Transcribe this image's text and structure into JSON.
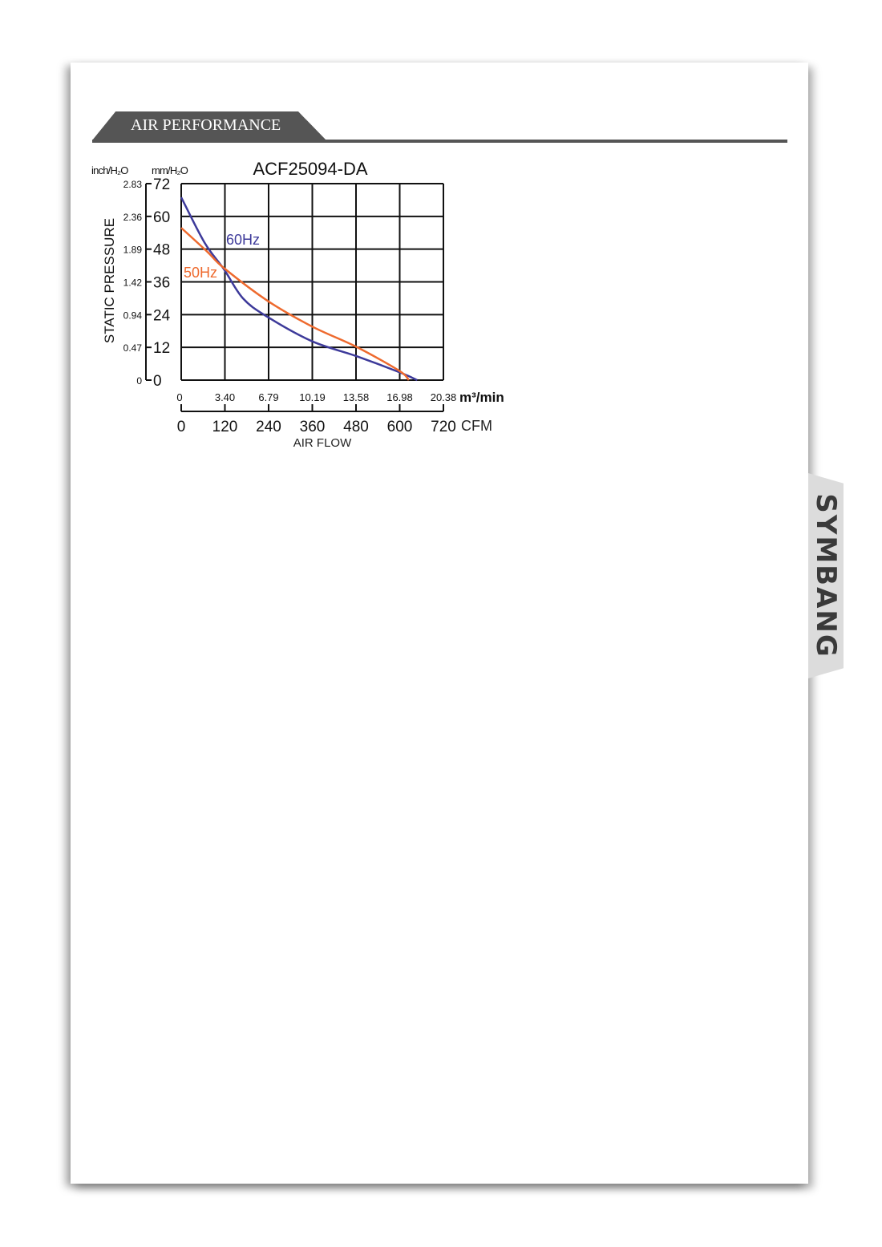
{
  "section": {
    "title": "AIR PERFORMANCE"
  },
  "logo": {
    "text": "SYMBANG"
  },
  "chart_data": {
    "type": "line",
    "title": "ACF25094-DA",
    "ylabel": "STATIC PRESSURE",
    "xlabel": "AIR FLOW",
    "y_unit_left": "inch/H₂O",
    "y_unit_right": "mm/H₂O",
    "x_unit_top": "m³/min",
    "x_unit_bottom": "CFM",
    "xlim": [
      0,
      720
    ],
    "ylim": [
      0,
      72
    ],
    "grid": true,
    "x_ticks_cfm": [
      "0",
      "120",
      "240",
      "360",
      "480",
      "600",
      "720"
    ],
    "x_ticks_m3min": [
      "0",
      "3.40",
      "6.79",
      "10.19",
      "13.58",
      "16.98",
      "20.38"
    ],
    "y_ticks_mm": [
      "0",
      "12",
      "24",
      "36",
      "48",
      "60",
      "72"
    ],
    "y_ticks_inch": [
      "0",
      "0.47",
      "0.94",
      "1.42",
      "1.89",
      "2.36",
      "2.83"
    ],
    "series": [
      {
        "name": "60Hz",
        "color": "#3d3a9a",
        "points": [
          [
            0,
            67
          ],
          [
            64,
            50.4
          ],
          [
            117,
            40.7
          ],
          [
            170,
            29.9
          ],
          [
            239,
            23
          ],
          [
            360,
            14.2
          ],
          [
            481,
            8.8
          ],
          [
            599,
            2.9
          ],
          [
            648,
            0
          ]
        ]
      },
      {
        "name": "50Hz",
        "color": "#ee6a2e",
        "points": [
          [
            0,
            55.8
          ],
          [
            72,
            47
          ],
          [
            117,
            41.1
          ],
          [
            239,
            28.9
          ],
          [
            360,
            19.6
          ],
          [
            481,
            12.2
          ],
          [
            599,
            3.4
          ],
          [
            625,
            0
          ]
        ]
      }
    ]
  }
}
